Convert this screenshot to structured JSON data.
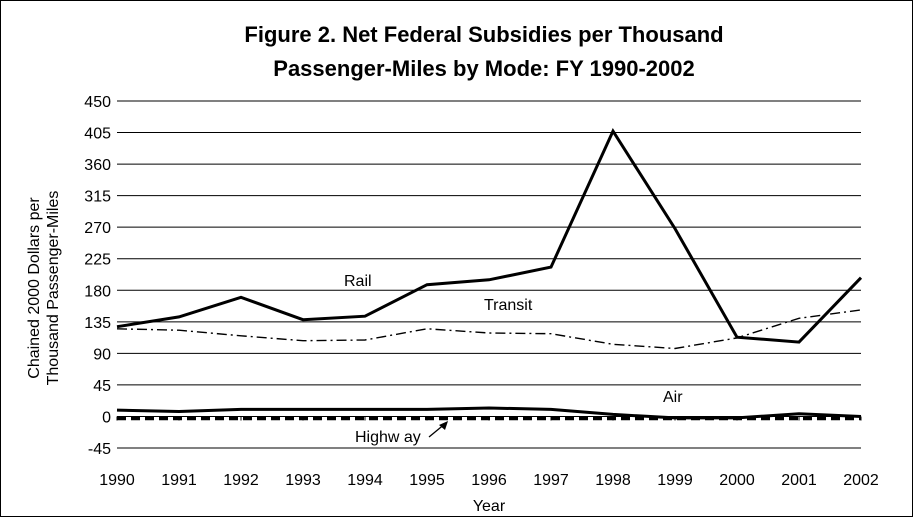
{
  "chart_data": {
    "type": "line",
    "title": [
      "Figure 2. Net Federal Subsidies per Thousand",
      "Passenger-Miles by Mode: FY 1990-2002"
    ],
    "xlabel": "Year",
    "ylabel": [
      "Chained 2000 Dollars per",
      "Thousand Passenger-Miles"
    ],
    "ylim": [
      -45,
      450
    ],
    "yticks": [
      -45,
      0,
      45,
      90,
      135,
      180,
      225,
      270,
      315,
      360,
      405,
      450
    ],
    "grid": "horizontal",
    "legend": "none (direct labels)",
    "x": [
      "1990",
      "1991",
      "1992",
      "1993",
      "1994",
      "1995",
      "1996",
      "1997",
      "1998",
      "1999",
      "2000",
      "2001",
      "2002"
    ],
    "series": [
      {
        "name": "Rail",
        "style": "solid-thick",
        "values": [
          128,
          142,
          170,
          138,
          143,
          188,
          195,
          213,
          407,
          268,
          113,
          106,
          198
        ]
      },
      {
        "name": "Transit",
        "style": "dash-dot",
        "values": [
          125,
          123,
          115,
          108,
          109,
          125,
          119,
          118,
          103,
          97,
          112,
          140,
          152
        ]
      },
      {
        "name": "Air",
        "style": "solid-thick",
        "values": [
          9,
          7,
          10,
          10,
          10,
          10,
          12,
          10,
          3,
          -2,
          -2,
          4,
          0
        ]
      },
      {
        "name": "Highw ay",
        "style": "dashed-thick",
        "values": [
          -3,
          -3,
          -3,
          -3,
          -3,
          -3,
          -3,
          -3,
          -3,
          -3,
          -3,
          -3,
          -3
        ]
      }
    ]
  }
}
